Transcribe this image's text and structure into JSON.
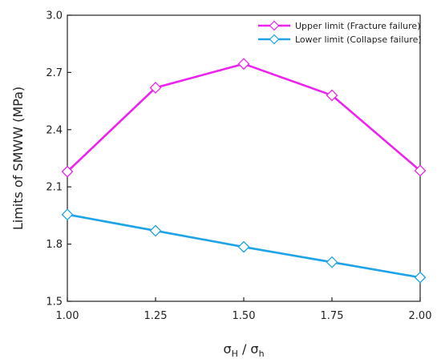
{
  "chart_data": {
    "type": "line",
    "x": [
      1.0,
      1.25,
      1.5,
      1.75,
      2.0
    ],
    "x_tick_labels": [
      "1.00",
      "1.25",
      "1.50",
      "1.75",
      "2.00"
    ],
    "xlim": [
      1.0,
      2.0
    ],
    "ylim": [
      1.5,
      3.0
    ],
    "y_ticks": [
      1.5,
      1.8,
      2.1,
      2.4,
      2.7,
      3.0
    ],
    "y_tick_labels": [
      "1.5",
      "1.8",
      "2.1",
      "2.4",
      "2.7",
      "3.0"
    ],
    "xlabel": {
      "main": "σ",
      "sub1": "H",
      "sep": " / ",
      "main2": "σ",
      "sub2": "h"
    },
    "ylabel": "Limits of SMWW  (MPa)",
    "grid": false,
    "legend_position": "top-right",
    "series": [
      {
        "name": "Upper limit (Fracture failure)",
        "color": "#ee22ee",
        "marker": "diamond",
        "values": [
          2.18,
          2.62,
          2.745,
          2.58,
          2.185
        ]
      },
      {
        "name": "Lower limit (Collapse failure)",
        "color": "#1fa3e8",
        "marker": "diamond",
        "values": [
          1.955,
          1.87,
          1.785,
          1.705,
          1.625
        ]
      }
    ]
  }
}
